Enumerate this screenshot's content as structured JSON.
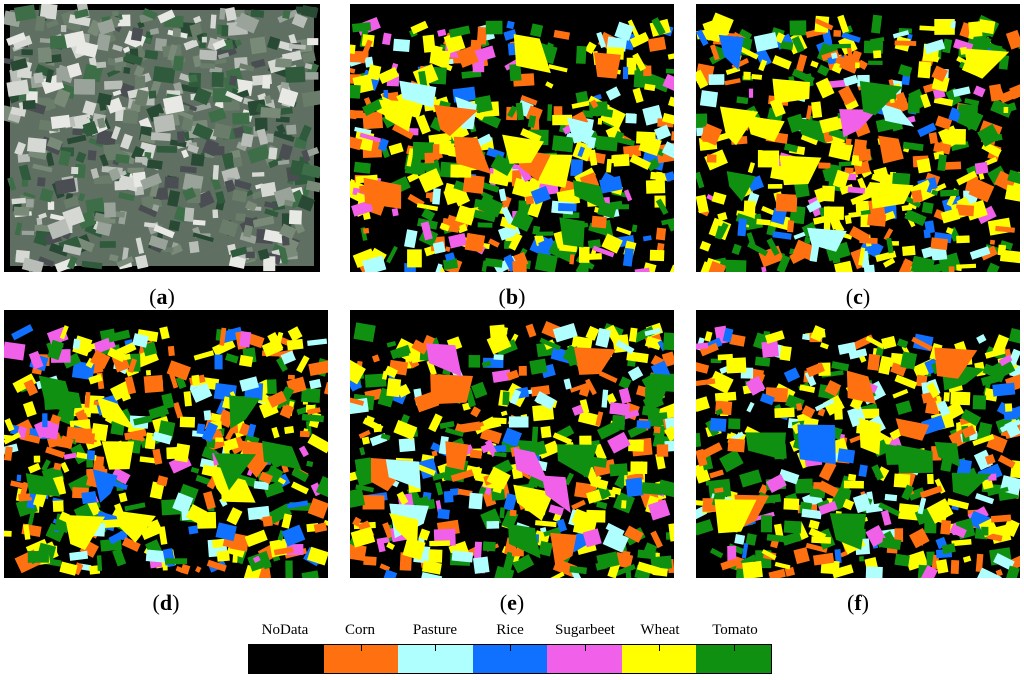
{
  "panels": [
    {
      "id": "a",
      "caption_letter": "a",
      "kind": "satellite"
    },
    {
      "id": "b",
      "caption_letter": "b",
      "kind": "classification",
      "seed": 11
    },
    {
      "id": "c",
      "caption_letter": "c",
      "kind": "classification",
      "seed": 23
    },
    {
      "id": "d",
      "caption_letter": "d",
      "kind": "classification",
      "seed": 37
    },
    {
      "id": "e",
      "caption_letter": "e",
      "kind": "classification",
      "seed": 41
    },
    {
      "id": "f",
      "caption_letter": "f",
      "kind": "classification",
      "seed": 53
    }
  ],
  "caption_open": "(",
  "caption_close": ")",
  "legend": {
    "classes": [
      {
        "label": "NoData",
        "color": "#000000"
      },
      {
        "label": "Corn",
        "color": "#ff7010"
      },
      {
        "label": "Pasture",
        "color": "#b0ffff"
      },
      {
        "label": "Rice",
        "color": "#1070ff"
      },
      {
        "label": "Sugarbeet",
        "color": "#f060e8"
      },
      {
        "label": "Wheat",
        "color": "#ffff00"
      },
      {
        "label": "Tomato",
        "color": "#109010"
      }
    ]
  }
}
